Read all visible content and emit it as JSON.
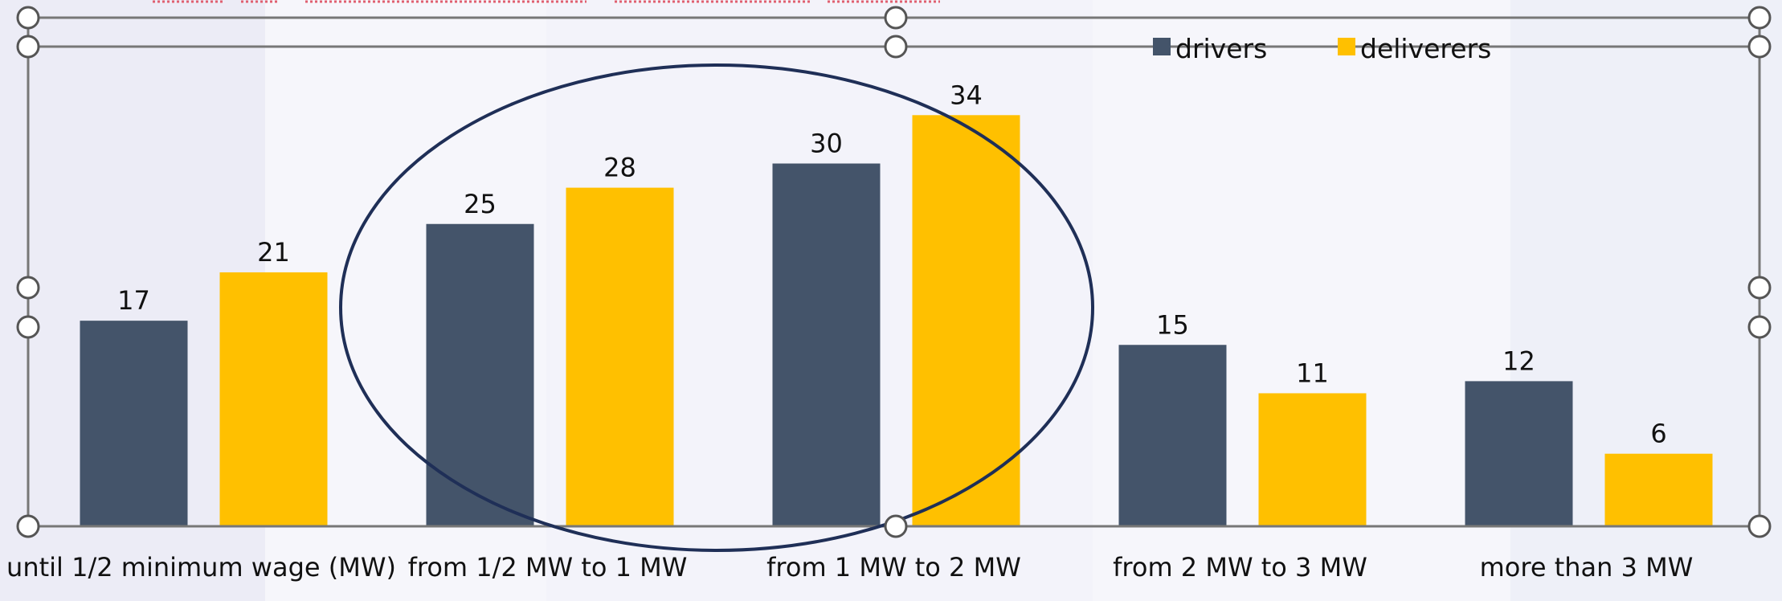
{
  "chart_data": {
    "type": "bar",
    "categories": [
      "until 1/2 minimum wage (MW)",
      "from 1/2 MW to 1 MW",
      "from 1 MW to 2 MW",
      "from 2 MW to 3 MW",
      "more than 3 MW"
    ],
    "series": [
      {
        "name": "drivers",
        "values": [
          17,
          25,
          30,
          15,
          12
        ],
        "color": "#44546a"
      },
      {
        "name": "deliverers",
        "values": [
          21,
          28,
          34,
          11,
          6
        ],
        "color": "#ffc000"
      }
    ],
    "ylim": [
      0,
      39
    ],
    "grid": false,
    "legend_position": "top-right",
    "data_labels": true,
    "annotations": [
      {
        "type": "ellipse",
        "around_categories": [
          "from 1/2 MW to 1 MW",
          "from 1 MW to 2 MW"
        ],
        "color": "#1f2f57"
      }
    ]
  },
  "colors": {
    "background": "#f6f6fb",
    "frame": "#777777",
    "text": "#111111",
    "handle_fill": "#ffffff",
    "handle_stroke": "#555555"
  },
  "editor": {
    "selection_handles": "sizing-handle-icon"
  }
}
